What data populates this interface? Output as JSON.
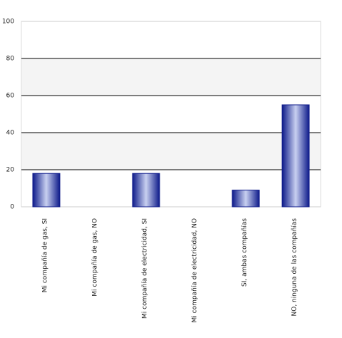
{
  "chart_data": {
    "type": "bar",
    "categories": [
      "Mi compañía de gas, SI",
      "Mi compañía de gas, NO",
      "Mi compañía de electricidad, SI",
      "Mi compañía de electricidad, NO",
      "SI, ambas compañías",
      "NO, ninguna de las compañías"
    ],
    "values": [
      18,
      0,
      18,
      0,
      9,
      55
    ],
    "color": "#0d1a8a",
    "ylim": [
      0,
      100
    ],
    "yticks": [
      0,
      20,
      40,
      60,
      80,
      100
    ],
    "grid": true
  }
}
